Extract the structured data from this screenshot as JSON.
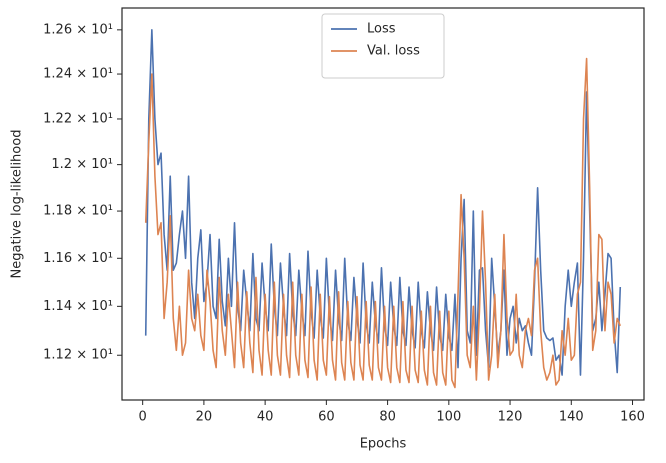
{
  "chart_data": {
    "type": "line",
    "xlabel": "Epochs",
    "ylabel": "Negative log-likelihood",
    "yscale": "log",
    "legend": "upper center",
    "grid": false,
    "xlim": [
      -6.75,
      163.75
    ],
    "xticks": [
      0,
      20,
      40,
      60,
      80,
      100,
      120,
      140,
      160
    ],
    "ylim": [
      11.02,
      12.7
    ],
    "yticks": [
      {
        "value": 11.2,
        "label": "1.12 × 10¹"
      },
      {
        "value": 11.4,
        "label": "1.14 × 10¹"
      },
      {
        "value": 11.6,
        "label": "1.16 × 10¹"
      },
      {
        "value": 11.8,
        "label": "1.18 × 10¹"
      },
      {
        "value": 12.0,
        "label": "1.2 × 10¹"
      },
      {
        "value": 12.2,
        "label": "1.22 × 10¹"
      },
      {
        "value": 12.4,
        "label": "1.24 × 10¹"
      },
      {
        "value": 12.6,
        "label": "1.26 × 10¹"
      }
    ],
    "x": [
      1,
      2,
      3,
      4,
      5,
      6,
      7,
      8,
      9,
      10,
      11,
      12,
      13,
      14,
      15,
      16,
      17,
      18,
      19,
      20,
      21,
      22,
      23,
      24,
      25,
      26,
      27,
      28,
      29,
      30,
      31,
      32,
      33,
      34,
      35,
      36,
      37,
      38,
      39,
      40,
      41,
      42,
      43,
      44,
      45,
      46,
      47,
      48,
      49,
      50,
      51,
      52,
      53,
      54,
      55,
      56,
      57,
      58,
      59,
      60,
      61,
      62,
      63,
      64,
      65,
      66,
      67,
      68,
      69,
      70,
      71,
      72,
      73,
      74,
      75,
      76,
      77,
      78,
      79,
      80,
      81,
      82,
      83,
      84,
      85,
      86,
      87,
      88,
      89,
      90,
      91,
      92,
      93,
      94,
      95,
      96,
      97,
      98,
      99,
      100,
      101,
      102,
      103,
      104,
      105,
      106,
      107,
      108,
      109,
      110,
      111,
      112,
      113,
      114,
      115,
      116,
      117,
      118,
      119,
      120,
      121,
      122,
      123,
      124,
      125,
      126,
      127,
      128,
      129,
      130,
      131,
      132,
      133,
      134,
      135,
      136,
      137,
      138,
      139,
      140,
      141,
      142,
      143,
      144,
      145,
      146,
      147,
      148,
      149,
      150,
      151,
      152,
      153,
      154,
      155,
      156
    ],
    "series": [
      {
        "name": "Loss",
        "color": "#4c72b0",
        "values": [
          11.28,
          12.2,
          12.6,
          12.2,
          12.0,
          12.05,
          11.7,
          11.55,
          11.95,
          11.55,
          11.58,
          11.7,
          11.8,
          11.6,
          11.95,
          11.5,
          11.35,
          11.6,
          11.72,
          11.42,
          11.5,
          11.7,
          11.4,
          11.35,
          11.68,
          11.42,
          11.32,
          11.6,
          11.4,
          11.75,
          11.4,
          11.3,
          11.55,
          11.42,
          11.3,
          11.62,
          11.35,
          11.3,
          11.58,
          11.4,
          11.3,
          11.66,
          11.4,
          11.28,
          11.58,
          11.4,
          11.28,
          11.62,
          11.38,
          11.28,
          11.55,
          11.38,
          11.28,
          11.63,
          11.38,
          11.27,
          11.55,
          11.36,
          11.27,
          11.6,
          11.36,
          11.26,
          11.55,
          11.35,
          11.26,
          11.6,
          11.34,
          11.26,
          11.52,
          11.35,
          11.25,
          11.58,
          11.33,
          11.25,
          11.5,
          11.33,
          11.25,
          11.56,
          11.32,
          11.24,
          11.5,
          11.32,
          11.24,
          11.52,
          11.3,
          11.24,
          11.48,
          11.3,
          11.23,
          11.5,
          11.3,
          11.23,
          11.46,
          11.3,
          11.22,
          11.48,
          11.28,
          11.22,
          11.45,
          11.28,
          11.22,
          11.45,
          11.15,
          11.6,
          11.85,
          11.3,
          11.25,
          11.8,
          11.2,
          11.55,
          11.56,
          11.3,
          11.15,
          11.6,
          11.4,
          11.2,
          11.3,
          11.55,
          11.2,
          11.35,
          11.4,
          11.25,
          11.35,
          11.3,
          11.32,
          11.25,
          11.2,
          11.5,
          11.9,
          11.55,
          11.3,
          11.27,
          11.26,
          11.27,
          11.18,
          11.2,
          11.12,
          11.4,
          11.55,
          11.4,
          11.5,
          11.58,
          11.12,
          11.6,
          12.32,
          11.8,
          11.3,
          11.35,
          11.5,
          11.3,
          11.45,
          11.62,
          11.6,
          11.3,
          11.13,
          11.48
        ]
      },
      {
        "name": "Val. loss",
        "color": "#dd8452",
        "values": [
          11.75,
          12.1,
          12.4,
          11.95,
          11.7,
          11.75,
          11.35,
          11.5,
          11.78,
          11.35,
          11.22,
          11.4,
          11.2,
          11.25,
          11.55,
          11.35,
          11.3,
          11.45,
          11.28,
          11.22,
          11.55,
          11.42,
          11.22,
          11.15,
          11.52,
          11.3,
          11.2,
          11.45,
          11.3,
          11.15,
          11.5,
          11.25,
          11.15,
          11.46,
          11.25,
          11.13,
          11.52,
          11.22,
          11.12,
          11.45,
          11.22,
          11.12,
          11.5,
          11.2,
          11.12,
          11.45,
          11.2,
          11.11,
          11.5,
          11.2,
          11.12,
          11.45,
          11.18,
          11.11,
          11.48,
          11.18,
          11.1,
          11.45,
          11.18,
          11.12,
          11.44,
          11.18,
          11.1,
          11.46,
          11.17,
          11.1,
          11.42,
          11.17,
          11.1,
          11.44,
          11.16,
          11.1,
          11.42,
          11.16,
          11.1,
          11.42,
          11.15,
          11.1,
          11.4,
          11.15,
          11.09,
          11.4,
          11.15,
          11.09,
          11.42,
          11.14,
          11.09,
          11.4,
          11.14,
          11.09,
          11.38,
          11.14,
          11.08,
          11.4,
          11.13,
          11.08,
          11.38,
          11.13,
          11.08,
          11.38,
          11.1,
          11.07,
          11.45,
          11.87,
          11.6,
          11.2,
          11.15,
          11.4,
          11.1,
          11.38,
          11.8,
          11.5,
          11.1,
          11.2,
          11.45,
          11.15,
          11.3,
          11.7,
          11.35,
          11.2,
          11.22,
          11.45,
          11.2,
          11.15,
          11.3,
          11.35,
          11.28,
          11.55,
          11.6,
          11.3,
          11.15,
          11.1,
          11.13,
          11.2,
          11.08,
          11.1,
          11.3,
          11.2,
          11.35,
          11.18,
          11.2,
          11.45,
          11.5,
          12.2,
          12.47,
          11.9,
          11.22,
          11.3,
          11.7,
          11.68,
          11.3,
          11.5,
          11.45,
          11.25,
          11.35,
          11.32
        ]
      }
    ]
  }
}
